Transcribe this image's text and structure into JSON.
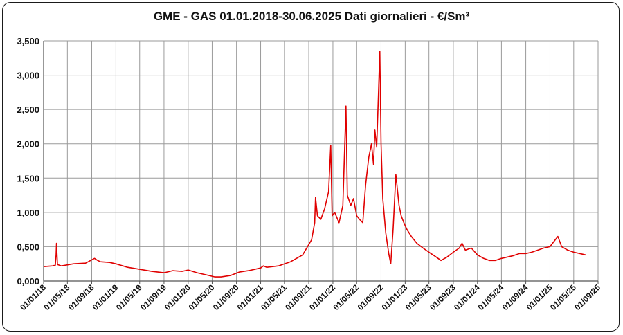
{
  "chart_data": {
    "type": "line",
    "title": "GME - GAS 01.01.2018-30.06.2025 Dati giornalieri - €/Sm³",
    "xlabel": "",
    "ylabel": "",
    "ylim": [
      0,
      3.5
    ],
    "xlim": [
      "2018-01-01",
      "2025-09-01"
    ],
    "grid": true,
    "legend": "none",
    "y_ticks": [
      "0,000",
      "0,500",
      "1,000",
      "1,500",
      "2,000",
      "2,500",
      "3,000",
      "3,500"
    ],
    "x_ticks": [
      "01/01/18",
      "01/05/18",
      "01/09/18",
      "01/01/19",
      "01/05/19",
      "01/09/19",
      "01/01/20",
      "01/05/20",
      "01/09/20",
      "01/01/21",
      "01/05/21",
      "01/09/21",
      "01/01/22",
      "01/05/22",
      "01/09/22",
      "01/01/23",
      "01/05/23",
      "01/09/23",
      "01/01/24",
      "01/05/24",
      "01/09/24",
      "01/01/25",
      "01/05/25",
      "01/09/25"
    ],
    "x_tick_dates": [
      "2018-01-01",
      "2018-05-01",
      "2018-09-01",
      "2019-01-01",
      "2019-05-01",
      "2019-09-01",
      "2020-01-01",
      "2020-05-01",
      "2020-09-01",
      "2021-01-01",
      "2021-05-01",
      "2021-09-01",
      "2022-01-01",
      "2022-05-01",
      "2022-09-01",
      "2023-01-01",
      "2023-05-01",
      "2023-09-01",
      "2024-01-01",
      "2024-05-01",
      "2024-09-01",
      "2025-01-01",
      "2025-05-01",
      "2025-09-01"
    ],
    "line_color": "#e00000",
    "series": [
      {
        "name": "",
        "x": [
          "2018-01-01",
          "2018-02-15",
          "2018-03-01",
          "2018-03-05",
          "2018-03-07",
          "2018-03-12",
          "2018-04-01",
          "2018-06-01",
          "2018-08-01",
          "2018-09-15",
          "2018-10-01",
          "2018-10-15",
          "2018-12-01",
          "2019-01-01",
          "2019-03-01",
          "2019-05-01",
          "2019-07-01",
          "2019-09-01",
          "2019-10-15",
          "2019-12-01",
          "2020-01-01",
          "2020-02-15",
          "2020-04-01",
          "2020-05-15",
          "2020-06-15",
          "2020-08-01",
          "2020-09-15",
          "2020-11-01",
          "2021-01-01",
          "2021-01-15",
          "2021-02-01",
          "2021-04-01",
          "2021-06-01",
          "2021-08-01",
          "2021-09-15",
          "2021-10-01",
          "2021-10-05",
          "2021-10-15",
          "2021-11-01",
          "2021-11-20",
          "2021-12-10",
          "2021-12-21",
          "2021-12-28",
          "2022-01-10",
          "2022-02-01",
          "2022-02-20",
          "2022-03-08",
          "2022-03-15",
          "2022-04-01",
          "2022-04-15",
          "2022-05-01",
          "2022-05-15",
          "2022-06-01",
          "2022-06-15",
          "2022-07-01",
          "2022-07-15",
          "2022-07-25",
          "2022-08-01",
          "2022-08-10",
          "2022-08-20",
          "2022-08-26",
          "2022-09-01",
          "2022-09-10",
          "2022-09-25",
          "2022-10-10",
          "2022-10-20",
          "2022-11-01",
          "2022-11-15",
          "2022-12-01",
          "2022-12-12",
          "2022-12-25",
          "2023-01-10",
          "2023-02-01",
          "2023-03-01",
          "2023-04-01",
          "2023-05-01",
          "2023-06-01",
          "2023-07-01",
          "2023-08-01",
          "2023-09-01",
          "2023-10-01",
          "2023-10-15",
          "2023-11-01",
          "2023-12-01",
          "2024-01-01",
          "2024-02-01",
          "2024-03-01",
          "2024-04-01",
          "2024-05-01",
          "2024-06-01",
          "2024-07-01",
          "2024-08-01",
          "2024-09-01",
          "2024-10-01",
          "2024-11-01",
          "2024-12-01",
          "2025-01-01",
          "2025-02-10",
          "2025-03-01",
          "2025-04-01",
          "2025-05-01",
          "2025-06-01",
          "2025-06-30"
        ],
        "values": [
          0.21,
          0.22,
          0.23,
          0.38,
          0.55,
          0.24,
          0.22,
          0.25,
          0.26,
          0.33,
          0.3,
          0.28,
          0.27,
          0.25,
          0.2,
          0.17,
          0.14,
          0.12,
          0.15,
          0.14,
          0.16,
          0.12,
          0.09,
          0.06,
          0.06,
          0.08,
          0.13,
          0.15,
          0.19,
          0.22,
          0.2,
          0.22,
          0.28,
          0.38,
          0.6,
          0.85,
          1.22,
          0.95,
          0.9,
          1.05,
          1.3,
          1.98,
          0.95,
          1.0,
          0.85,
          1.1,
          2.55,
          1.25,
          1.1,
          1.2,
          0.95,
          0.9,
          0.85,
          1.4,
          1.8,
          2.0,
          1.7,
          2.2,
          1.95,
          2.8,
          3.35,
          2.0,
          1.2,
          0.7,
          0.4,
          0.25,
          0.75,
          1.55,
          1.1,
          0.95,
          0.85,
          0.75,
          0.65,
          0.55,
          0.48,
          0.42,
          0.36,
          0.3,
          0.35,
          0.42,
          0.48,
          0.55,
          0.45,
          0.48,
          0.38,
          0.33,
          0.3,
          0.3,
          0.33,
          0.35,
          0.37,
          0.4,
          0.4,
          0.42,
          0.45,
          0.48,
          0.5,
          0.65,
          0.5,
          0.45,
          0.42,
          0.4,
          0.38
        ]
      }
    ]
  }
}
